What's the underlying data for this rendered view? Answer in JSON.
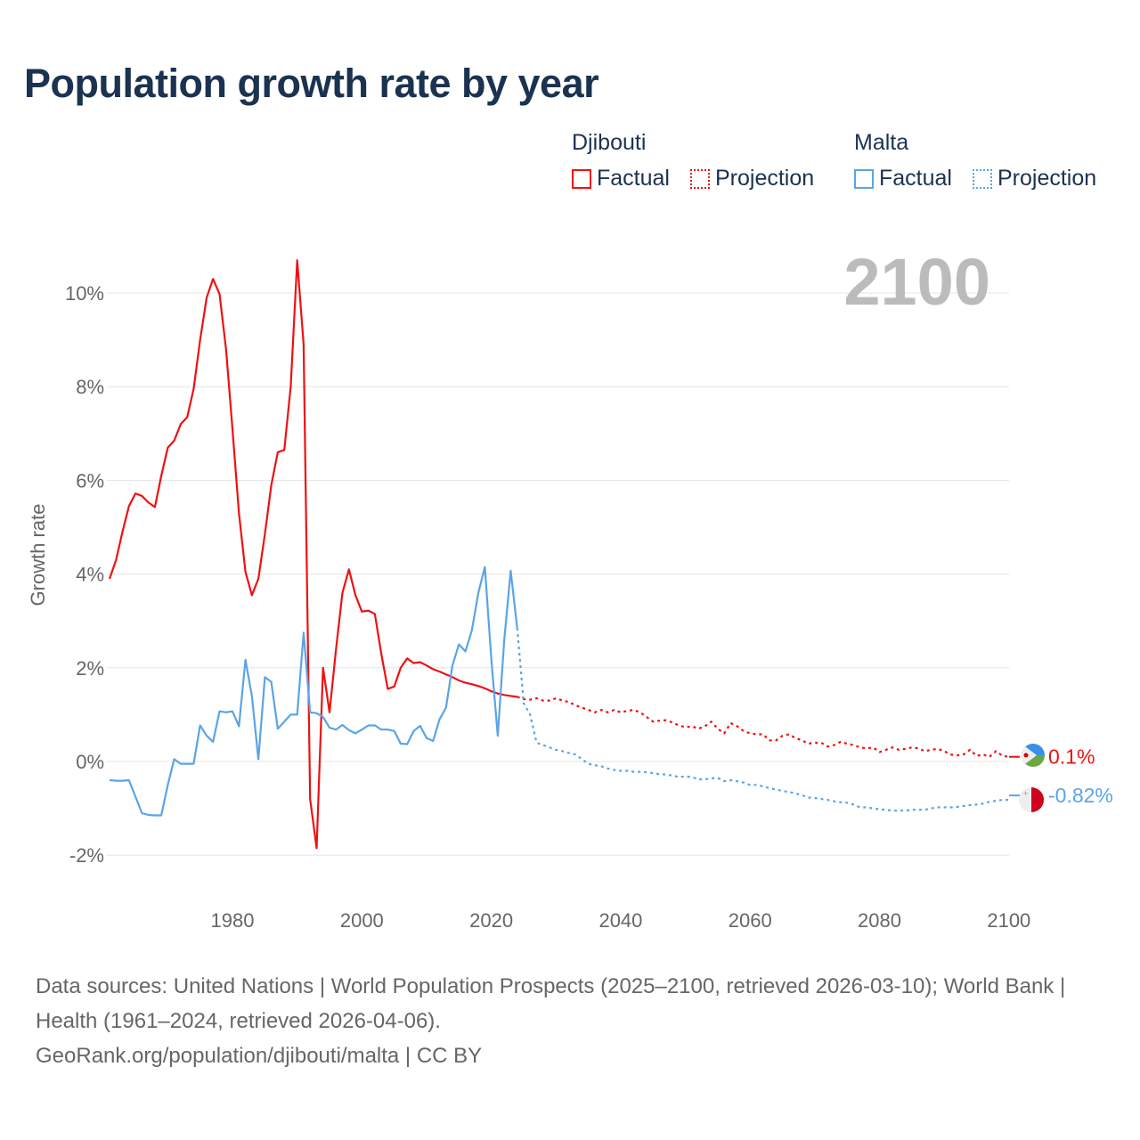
{
  "title": "Population growth rate by year",
  "legend": {
    "groups": [
      {
        "country": "Djibouti",
        "color": "#ee1111",
        "factual": "Factual",
        "projection": "Projection"
      },
      {
        "country": "Malta",
        "color": "#5ba4e5",
        "factual": "Factual",
        "projection": "Projection"
      }
    ]
  },
  "year_display": "2100",
  "source": "Data sources: United Nations | World Population Prospects (2025–2100, retrieved 2026-03-10); World Bank | Health (1961–2024, retrieved 2026-04-06).",
  "attribution": "GeoRank.org/population/djibouti/malta | CC BY",
  "chart_data": {
    "type": "line",
    "title": "Population growth rate by year",
    "xlabel": "",
    "ylabel": "Growth rate",
    "xlim": [
      1961,
      2100
    ],
    "ylim": [
      -3,
      11
    ],
    "xticks": [
      1980,
      2000,
      2020,
      2040,
      2060,
      2080,
      2100
    ],
    "yticks": [
      -2,
      0,
      2,
      4,
      6,
      8,
      10
    ],
    "ytick_labels": [
      "-2%",
      "0%",
      "2%",
      "4%",
      "6%",
      "8%",
      "10%"
    ],
    "grid": true,
    "series": [
      {
        "name": "Djibouti",
        "kind": "factual",
        "color": "#ee1111",
        "x_start": 1961,
        "values": [
          3.9,
          4.3,
          4.9,
          5.45,
          5.72,
          5.67,
          5.53,
          5.43,
          6.1,
          6.7,
          6.85,
          7.2,
          7.35,
          7.95,
          9.0,
          9.9,
          10.3,
          9.98,
          8.8,
          7.1,
          5.3,
          4.05,
          3.55,
          3.9,
          4.85,
          5.9,
          6.6,
          6.65,
          8.0,
          10.7,
          8.9,
          -0.8,
          -1.85,
          2.0,
          1.05,
          2.4,
          3.6,
          4.1,
          3.55,
          3.2,
          3.22,
          3.15,
          2.3,
          1.55,
          1.6,
          2.0,
          2.2,
          2.1,
          2.12,
          2.05,
          1.97,
          1.92,
          1.86,
          1.8,
          1.73,
          1.68,
          1.65,
          1.61,
          1.56,
          1.5,
          1.45,
          1.42,
          1.4,
          1.38
        ]
      },
      {
        "name": "Djibouti",
        "kind": "projection",
        "color": "#ee1111",
        "x_start": 2024,
        "values": [
          1.38,
          1.33,
          1.32,
          1.35,
          1.3,
          1.3,
          1.35,
          1.3,
          1.27,
          1.2,
          1.15,
          1.1,
          1.05,
          1.1,
          1.05,
          1.1,
          1.05,
          1.08,
          1.1,
          1.05,
          0.95,
          0.85,
          0.87,
          0.88,
          0.83,
          0.77,
          0.73,
          0.75,
          0.7,
          0.75,
          0.85,
          0.7,
          0.6,
          0.82,
          0.75,
          0.65,
          0.6,
          0.58,
          0.58,
          0.45,
          0.45,
          0.55,
          0.58,
          0.5,
          0.45,
          0.38,
          0.4,
          0.4,
          0.32,
          0.35,
          0.42,
          0.38,
          0.35,
          0.3,
          0.28,
          0.3,
          0.2,
          0.25,
          0.3,
          0.25,
          0.27,
          0.3,
          0.28,
          0.22,
          0.25,
          0.27,
          0.22,
          0.15,
          0.13,
          0.15,
          0.25,
          0.12,
          0.15,
          0.1,
          0.22,
          0.12,
          0.1
        ]
      },
      {
        "name": "Malta",
        "kind": "factual",
        "color": "#5ba4e5",
        "x_start": 1961,
        "values": [
          -0.4,
          -0.41,
          -0.41,
          -0.4,
          -0.75,
          -1.1,
          -1.14,
          -1.15,
          -1.15,
          -0.5,
          0.05,
          -0.05,
          -0.05,
          -0.05,
          0.77,
          0.55,
          0.42,
          1.07,
          1.05,
          1.07,
          0.75,
          2.17,
          1.4,
          0.05,
          1.8,
          1.7,
          0.7,
          0.85,
          1.0,
          1.0,
          2.75,
          1.05,
          1.03,
          0.95,
          0.72,
          0.68,
          0.78,
          0.67,
          0.6,
          0.68,
          0.77,
          0.77,
          0.68,
          0.68,
          0.65,
          0.38,
          0.37,
          0.65,
          0.76,
          0.5,
          0.44,
          0.9,
          1.15,
          2.05,
          2.5,
          2.35,
          2.8,
          3.6,
          4.15,
          2.2,
          0.55,
          2.6,
          4.07,
          2.85
        ]
      },
      {
        "name": "Malta",
        "kind": "projection",
        "color": "#5ba4e5",
        "x_start": 2024,
        "values": [
          2.85,
          1.25,
          1.0,
          0.4,
          0.35,
          0.3,
          0.25,
          0.22,
          0.18,
          0.15,
          0.05,
          -0.05,
          -0.08,
          -0.1,
          -0.15,
          -0.18,
          -0.2,
          -0.2,
          -0.22,
          -0.22,
          -0.23,
          -0.25,
          -0.27,
          -0.28,
          -0.3,
          -0.33,
          -0.32,
          -0.33,
          -0.38,
          -0.38,
          -0.36,
          -0.35,
          -0.42,
          -0.4,
          -0.42,
          -0.45,
          -0.5,
          -0.5,
          -0.53,
          -0.57,
          -0.6,
          -0.63,
          -0.65,
          -0.68,
          -0.72,
          -0.77,
          -0.78,
          -0.8,
          -0.82,
          -0.85,
          -0.87,
          -0.88,
          -0.92,
          -0.98,
          -0.98,
          -1.0,
          -1.02,
          -1.03,
          -1.05,
          -1.05,
          -1.05,
          -1.03,
          -1.03,
          -1.03,
          -1.0,
          -0.98,
          -0.98,
          -0.98,
          -0.97,
          -0.95,
          -0.93,
          -0.92,
          -0.9,
          -0.86,
          -0.84,
          -0.82,
          -0.82
        ]
      }
    ],
    "end_labels": [
      {
        "country": "Djibouti",
        "value": 0.1,
        "label": "0.1%",
        "color": "#ee1111"
      },
      {
        "country": "Malta",
        "value": -0.82,
        "label": "-0.82%",
        "color": "#5ba4e5"
      }
    ]
  }
}
